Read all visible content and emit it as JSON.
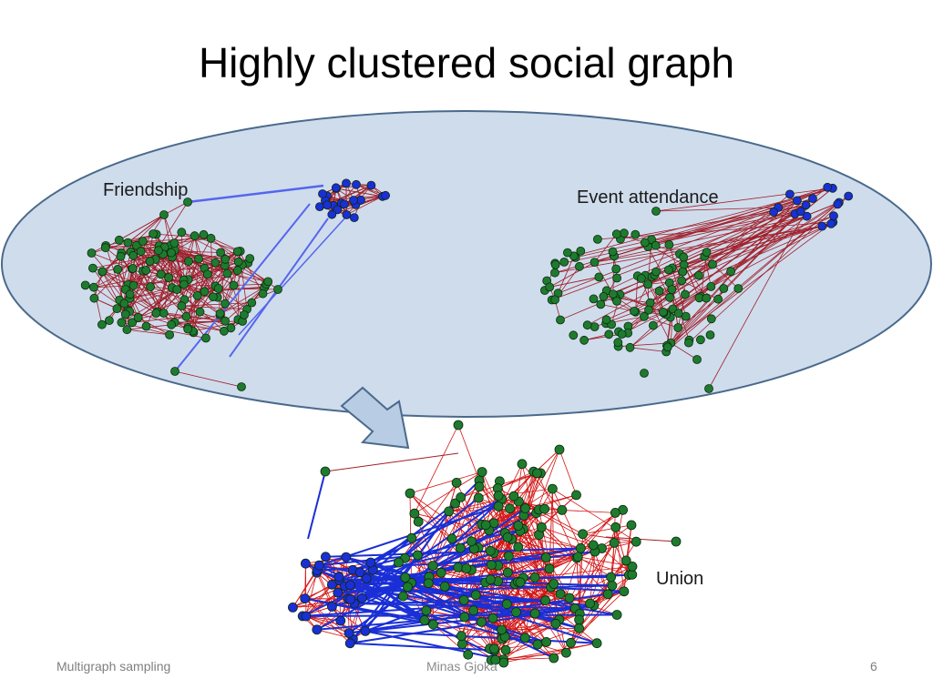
{
  "slide": {
    "title": "Highly clustered social graph",
    "labels": {
      "friendship": "Friendship",
      "event": "Event attendance",
      "union": "Union"
    },
    "footer": {
      "left": "Multigraph sampling",
      "center": "Minas Gjoka",
      "page": "6"
    }
  },
  "colors": {
    "node_green": "#1e7b2e",
    "node_blue": "#1a2fd6",
    "edge_red": "#a0202a",
    "edge_bright_red": "#d41414",
    "edge_blue": "#5566ee",
    "ellipse_fill": "#cfdcec",
    "ellipse_stroke": "#4a6a8c",
    "arrow_fill": "#b8cce4"
  }
}
